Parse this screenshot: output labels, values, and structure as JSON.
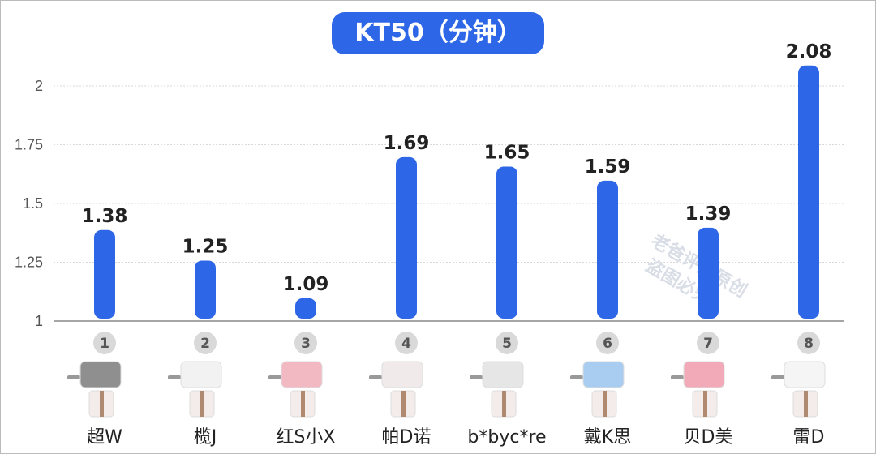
{
  "chart_data": {
    "type": "bar",
    "title": "KT50（分钟）",
    "categories": [
      "超W",
      "榄J",
      "红S小X",
      "帕D诺",
      "b*byc*re",
      "戴K思",
      "贝D美",
      "雷D"
    ],
    "category_numbers": [
      "1",
      "2",
      "3",
      "4",
      "5",
      "6",
      "7",
      "8"
    ],
    "values": [
      1.38,
      1.25,
      1.09,
      1.69,
      1.65,
      1.59,
      1.39,
      2.08
    ],
    "data_labels": [
      "1.38",
      "1.25",
      "1.09",
      "1.69",
      "1.65",
      "1.59",
      "1.39",
      "2.08"
    ],
    "ylim": [
      1,
      2.1
    ],
    "yticks": [
      1,
      1.25,
      1.5,
      1.75,
      2
    ],
    "ytick_labels": [
      "1",
      "1.25",
      "1.5",
      "1.75",
      "2"
    ],
    "grid": true,
    "bar_color": "#2e66e8",
    "product_colors": [
      "#8f8f8f",
      "#f2f2f2",
      "#f3b9c3",
      "#f0eaea",
      "#e6e6e6",
      "#a9cdf0",
      "#f2a9b8",
      "#f5f5f5"
    ]
  },
  "watermark": {
    "line1": "老爸评测原创",
    "line2": "盗图必究"
  }
}
